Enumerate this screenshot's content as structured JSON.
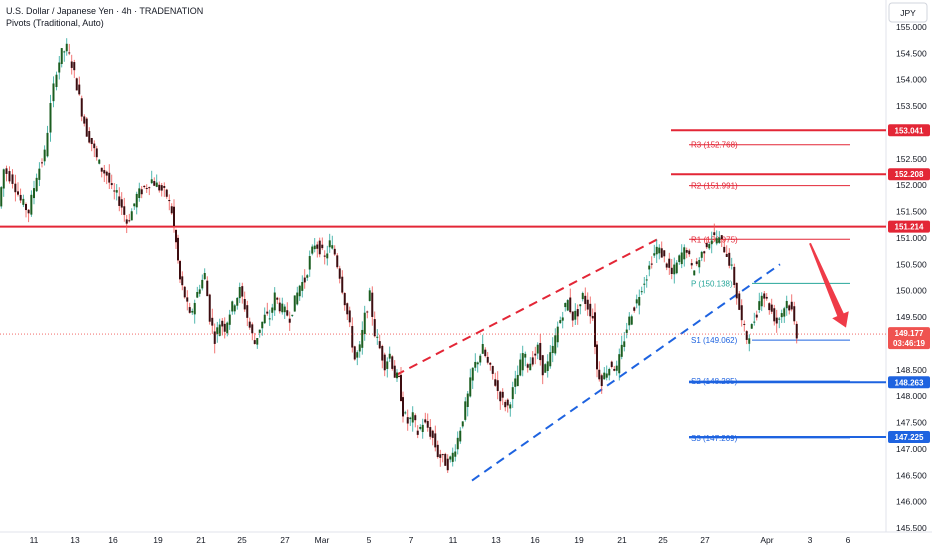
{
  "header": {
    "title": "U.S. Dollar / Japanese Yen · 4h · TRADENATION",
    "subtitle": "Pivots (Traditional, Auto)"
  },
  "currency_button": "JPY",
  "colors": {
    "up": "#26a69a",
    "up_dark": "#1b5e20",
    "down": "#ef5350",
    "down_dark": "#3d0d10",
    "resistance": "#e32636",
    "support": "#1e63e0",
    "pivot_green": "#26a69a",
    "last_price": "#ef5350",
    "arrow": "#ef3b48"
  },
  "price_axis": {
    "min": 145.5,
    "max": 155.0,
    "ticks": [
      "155.000",
      "154.500",
      "154.000",
      "153.500",
      "153.000",
      "152.500",
      "152.000",
      "151.500",
      "151.000",
      "150.500",
      "150.000",
      "149.500",
      "149.000",
      "148.500",
      "148.000",
      "147.500",
      "147.000",
      "146.500",
      "146.000",
      "145.500"
    ]
  },
  "time_axis": {
    "labels": [
      "11",
      "13",
      "16",
      "19",
      "21",
      "25",
      "27",
      "Mar",
      "5",
      "7",
      "11",
      "13",
      "16",
      "19",
      "21",
      "25",
      "27",
      "Apr",
      "3",
      "6"
    ]
  },
  "levels": [
    {
      "name": "resistance-153",
      "price": 153.041,
      "label": "153.041",
      "color": "resistance"
    },
    {
      "name": "resistance-152",
      "price": 152.208,
      "label": "152.208",
      "color": "resistance"
    },
    {
      "name": "resistance-151",
      "price": 151.214,
      "label": "151.214",
      "color": "resistance"
    },
    {
      "name": "support-148",
      "price": 148.263,
      "label": "148.263",
      "color": "support"
    },
    {
      "name": "support-147",
      "price": 147.225,
      "label": "147.225",
      "color": "support"
    }
  ],
  "pivots": [
    {
      "name": "R3",
      "label": "R3 (152.768)",
      "price": 152.768,
      "color": "resistance"
    },
    {
      "name": "R2",
      "label": "R2 (151.991)",
      "price": 151.991,
      "color": "resistance"
    },
    {
      "name": "R1",
      "label": "R1 (150.975)",
      "price": 150.975,
      "color": "resistance"
    },
    {
      "name": "P",
      "label": "P (150.138)",
      "price": 150.138,
      "color": "pivot_green"
    },
    {
      "name": "S1",
      "label": "S1 (149.062)",
      "price": 149.062,
      "color": "support"
    },
    {
      "name": "S2",
      "label": "S2 (148.285)",
      "price": 148.285,
      "color": "support"
    },
    {
      "name": "S3",
      "label": "S3 (147.209)",
      "price": 147.209,
      "color": "support"
    }
  ],
  "last_price": {
    "price": 149.177,
    "label": "149.177",
    "countdown": "03:46:19"
  },
  "chart_data": {
    "type": "candlestick",
    "title": "U.S. Dollar / Japanese Yen · 4h · TRADENATION",
    "ylim": [
      145.5,
      155.0
    ],
    "x_labels": [
      "11",
      "13",
      "16",
      "19",
      "21",
      "25",
      "27",
      "Mar",
      "5",
      "7",
      "11",
      "13",
      "16",
      "19",
      "21",
      "25",
      "27",
      "Apr",
      "3",
      "6"
    ],
    "path_points": [
      [
        0,
        151.6
      ],
      [
        5,
        152.3
      ],
      [
        14,
        152.1
      ],
      [
        22,
        151.7
      ],
      [
        30,
        151.5
      ],
      [
        38,
        152.2
      ],
      [
        46,
        152.6
      ],
      [
        52,
        153.5
      ],
      [
        58,
        154.2
      ],
      [
        63,
        154.5
      ],
      [
        68,
        154.6
      ],
      [
        73,
        154.3
      ],
      [
        78,
        153.9
      ],
      [
        83,
        153.4
      ],
      [
        88,
        153.0
      ],
      [
        93,
        152.8
      ],
      [
        98,
        152.5
      ],
      [
        103,
        152.3
      ],
      [
        108,
        152.2
      ],
      [
        113,
        151.9
      ],
      [
        118,
        151.8
      ],
      [
        123,
        151.6
      ],
      [
        128,
        151.3
      ],
      [
        133,
        151.5
      ],
      [
        138,
        151.8
      ],
      [
        143,
        151.9
      ],
      [
        148,
        152.0
      ],
      [
        153,
        152.1
      ],
      [
        158,
        152.0
      ],
      [
        163,
        151.9
      ],
      [
        168,
        151.8
      ],
      [
        173,
        151.5
      ],
      [
        177,
        150.9
      ],
      [
        181,
        150.2
      ],
      [
        186,
        149.9
      ],
      [
        191,
        149.5
      ],
      [
        196,
        149.8
      ],
      [
        201,
        150.1
      ],
      [
        206,
        150.3
      ],
      [
        211,
        149.5
      ],
      [
        216,
        149.1
      ],
      [
        221,
        149.4
      ],
      [
        226,
        149.3
      ],
      [
        231,
        149.6
      ],
      [
        236,
        149.8
      ],
      [
        241,
        150.0
      ],
      [
        246,
        149.7
      ],
      [
        251,
        149.3
      ],
      [
        256,
        149.0
      ],
      [
        261,
        149.3
      ],
      [
        266,
        149.5
      ],
      [
        271,
        149.5
      ],
      [
        276,
        149.9
      ],
      [
        281,
        149.7
      ],
      [
        286,
        149.6
      ],
      [
        291,
        149.5
      ],
      [
        296,
        149.8
      ],
      [
        301,
        150.1
      ],
      [
        306,
        150.2
      ],
      [
        311,
        150.6
      ],
      [
        316,
        150.9
      ],
      [
        321,
        150.8
      ],
      [
        326,
        150.6
      ],
      [
        331,
        150.9
      ],
      [
        336,
        150.7
      ],
      [
        341,
        150.3
      ],
      [
        346,
        149.8
      ],
      [
        351,
        149.3
      ],
      [
        356,
        148.7
      ],
      [
        361,
        148.9
      ],
      [
        366,
        149.5
      ],
      [
        371,
        149.9
      ],
      [
        376,
        149.2
      ],
      [
        381,
        148.9
      ],
      [
        386,
        148.6
      ],
      [
        391,
        148.8
      ],
      [
        396,
        148.4
      ],
      [
        400,
        148.3
      ],
      [
        404,
        147.7
      ],
      [
        409,
        147.5
      ],
      [
        414,
        147.6
      ],
      [
        419,
        147.3
      ],
      [
        424,
        147.5
      ],
      [
        429,
        147.4
      ],
      [
        434,
        147.2
      ],
      [
        439,
        146.9
      ],
      [
        444,
        146.8
      ],
      [
        449,
        146.7
      ],
      [
        454,
        146.9
      ],
      [
        459,
        147.2
      ],
      [
        464,
        147.6
      ],
      [
        469,
        148.0
      ],
      [
        474,
        148.5
      ],
      [
        479,
        148.7
      ],
      [
        484,
        148.9
      ],
      [
        489,
        148.6
      ],
      [
        494,
        148.4
      ],
      [
        499,
        148.1
      ],
      [
        504,
        147.9
      ],
      [
        509,
        147.8
      ],
      [
        514,
        148.1
      ],
      [
        519,
        148.4
      ],
      [
        524,
        148.8
      ],
      [
        529,
        148.6
      ],
      [
        534,
        148.7
      ],
      [
        539,
        148.9
      ],
      [
        544,
        148.5
      ],
      [
        549,
        148.6
      ],
      [
        554,
        148.9
      ],
      [
        559,
        149.3
      ],
      [
        564,
        149.6
      ],
      [
        569,
        149.8
      ],
      [
        574,
        149.5
      ],
      [
        579,
        149.6
      ],
      [
        584,
        149.9
      ],
      [
        589,
        149.7
      ],
      [
        594,
        149.5
      ],
      [
        598,
        148.5
      ],
      [
        603,
        148.3
      ],
      [
        608,
        148.5
      ],
      [
        613,
        148.6
      ],
      [
        618,
        148.5
      ],
      [
        623,
        148.9
      ],
      [
        628,
        149.3
      ],
      [
        633,
        149.6
      ],
      [
        638,
        149.8
      ],
      [
        643,
        150.1
      ],
      [
        648,
        150.3
      ],
      [
        653,
        150.6
      ],
      [
        658,
        150.8
      ],
      [
        663,
        150.7
      ],
      [
        668,
        150.5
      ],
      [
        673,
        150.3
      ],
      [
        678,
        150.5
      ],
      [
        683,
        150.7
      ],
      [
        688,
        150.8
      ],
      [
        693,
        150.4
      ],
      [
        698,
        150.5
      ],
      [
        703,
        150.7
      ],
      [
        708,
        150.9
      ],
      [
        713,
        151.0
      ],
      [
        718,
        151.0
      ],
      [
        723,
        150.9
      ],
      [
        728,
        150.7
      ],
      [
        733,
        150.4
      ],
      [
        738,
        149.9
      ],
      [
        743,
        149.4
      ],
      [
        748,
        149.1
      ],
      [
        753,
        149.3
      ],
      [
        758,
        149.6
      ],
      [
        763,
        150.0
      ],
      [
        768,
        149.8
      ],
      [
        773,
        149.6
      ],
      [
        778,
        149.4
      ],
      [
        783,
        149.6
      ],
      [
        788,
        149.8
      ],
      [
        793,
        149.6
      ],
      [
        798,
        149.177
      ]
    ],
    "channel_upper": [
      [
        396,
        148.4
      ],
      [
        660,
        151.0
      ]
    ],
    "channel_lower": [
      [
        472,
        146.4
      ],
      [
        780,
        150.5
      ]
    ],
    "forecast_arrow": {
      "from": [
        810,
        150.9
      ],
      "to": [
        846,
        149.3
      ]
    }
  }
}
